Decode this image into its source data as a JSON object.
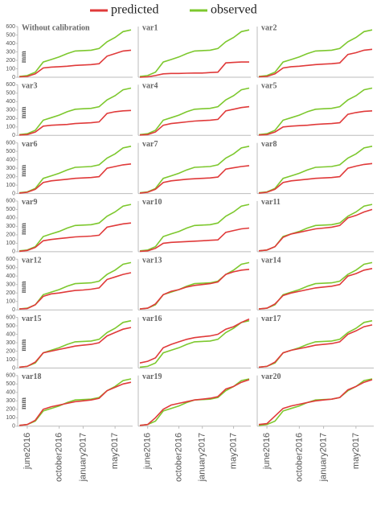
{
  "chart_data": {
    "type": "line",
    "x": [
      "2016-05",
      "2016-06",
      "2016-07",
      "2016-08",
      "2016-09",
      "2016-10",
      "2016-11",
      "2016-12",
      "2017-01",
      "2017-02",
      "2017-03",
      "2017-04",
      "2017-05",
      "2017-06",
      "2017-07"
    ],
    "xticks": [
      {
        "value": "2016-06",
        "label": "june2016"
      },
      {
        "value": "2016-10",
        "label": "october2016"
      },
      {
        "value": "2017-01",
        "label": "january2017"
      },
      {
        "value": "2017-05",
        "label": "may2017"
      }
    ],
    "ylim": [
      0,
      600
    ],
    "yticks": [
      0,
      100,
      200,
      300,
      400,
      500,
      600
    ],
    "y_label": "mm",
    "series": [
      {
        "name": "predicted",
        "color": "#e03a3a"
      },
      {
        "name": "observed",
        "color": "#7dc82e"
      }
    ],
    "panels": [
      {
        "title": "Without calibration",
        "predicted": [
          5,
          10,
          40,
          110,
          120,
          125,
          130,
          140,
          145,
          150,
          160,
          250,
          280,
          310,
          320
        ],
        "observed": [
          10,
          20,
          60,
          180,
          210,
          240,
          280,
          310,
          315,
          320,
          340,
          420,
          470,
          540,
          560
        ]
      },
      {
        "title": "var1",
        "predicted": [
          0,
          5,
          20,
          40,
          45,
          45,
          48,
          50,
          50,
          55,
          60,
          170,
          175,
          180,
          180
        ],
        "observed": [
          10,
          20,
          60,
          180,
          210,
          240,
          280,
          310,
          315,
          320,
          340,
          420,
          470,
          540,
          560
        ]
      },
      {
        "title": "var2",
        "predicted": [
          5,
          10,
          40,
          110,
          125,
          130,
          140,
          150,
          155,
          160,
          170,
          270,
          290,
          320,
          330
        ],
        "observed": [
          10,
          20,
          60,
          180,
          210,
          240,
          280,
          310,
          315,
          320,
          340,
          420,
          470,
          540,
          560
        ]
      },
      {
        "title": "var3",
        "predicted": [
          5,
          10,
          40,
          110,
          120,
          125,
          130,
          140,
          145,
          150,
          160,
          260,
          280,
          290,
          295
        ],
        "observed": [
          10,
          20,
          60,
          180,
          210,
          240,
          280,
          310,
          315,
          320,
          340,
          420,
          470,
          540,
          560
        ]
      },
      {
        "title": "var4",
        "predicted": [
          5,
          10,
          40,
          120,
          140,
          150,
          160,
          170,
          175,
          180,
          190,
          290,
          310,
          330,
          340
        ],
        "observed": [
          10,
          20,
          60,
          180,
          210,
          240,
          280,
          310,
          315,
          320,
          340,
          420,
          470,
          540,
          560
        ]
      },
      {
        "title": "var5",
        "predicted": [
          5,
          10,
          40,
          100,
          110,
          115,
          120,
          130,
          135,
          140,
          150,
          250,
          270,
          285,
          290
        ],
        "observed": [
          10,
          20,
          60,
          180,
          210,
          240,
          280,
          310,
          315,
          320,
          340,
          420,
          470,
          540,
          560
        ]
      },
      {
        "title": "var6",
        "predicted": [
          5,
          15,
          50,
          130,
          150,
          160,
          170,
          180,
          185,
          190,
          200,
          300,
          320,
          340,
          350
        ],
        "observed": [
          10,
          20,
          60,
          180,
          210,
          240,
          280,
          310,
          315,
          320,
          340,
          420,
          470,
          540,
          560
        ]
      },
      {
        "title": "var7",
        "predicted": [
          5,
          15,
          50,
          130,
          150,
          160,
          170,
          175,
          180,
          185,
          195,
          290,
          305,
          320,
          330
        ],
        "observed": [
          10,
          20,
          60,
          180,
          210,
          240,
          280,
          310,
          315,
          320,
          340,
          420,
          470,
          540,
          560
        ]
      },
      {
        "title": "var8",
        "predicted": [
          5,
          15,
          50,
          130,
          150,
          160,
          170,
          180,
          185,
          190,
          200,
          300,
          325,
          345,
          355
        ],
        "observed": [
          10,
          20,
          60,
          180,
          210,
          240,
          280,
          310,
          315,
          320,
          340,
          420,
          470,
          540,
          560
        ]
      },
      {
        "title": "var9",
        "predicted": [
          5,
          15,
          50,
          130,
          145,
          155,
          165,
          175,
          180,
          185,
          195,
          290,
          310,
          330,
          340
        ],
        "observed": [
          10,
          20,
          60,
          180,
          210,
          240,
          280,
          310,
          315,
          320,
          340,
          420,
          470,
          540,
          560
        ]
      },
      {
        "title": "var10",
        "predicted": [
          5,
          10,
          40,
          100,
          110,
          115,
          120,
          125,
          130,
          135,
          140,
          230,
          250,
          270,
          280
        ],
        "observed": [
          10,
          20,
          60,
          180,
          210,
          240,
          280,
          310,
          315,
          320,
          340,
          420,
          470,
          540,
          560
        ]
      },
      {
        "title": "var11",
        "predicted": [
          10,
          20,
          60,
          170,
          210,
          230,
          250,
          270,
          280,
          290,
          310,
          400,
          430,
          470,
          500
        ],
        "observed": [
          10,
          20,
          60,
          180,
          210,
          240,
          280,
          310,
          315,
          320,
          340,
          420,
          470,
          540,
          560
        ]
      },
      {
        "title": "var12",
        "predicted": [
          10,
          15,
          60,
          160,
          190,
          200,
          215,
          230,
          235,
          245,
          260,
          360,
          390,
          420,
          440
        ],
        "observed": [
          10,
          20,
          60,
          180,
          210,
          240,
          280,
          310,
          315,
          320,
          340,
          420,
          470,
          540,
          560
        ]
      },
      {
        "title": "var13",
        "predicted": [
          10,
          20,
          70,
          180,
          220,
          240,
          270,
          290,
          300,
          310,
          330,
          420,
          450,
          470,
          480
        ],
        "observed": [
          10,
          20,
          60,
          180,
          210,
          240,
          280,
          310,
          315,
          320,
          340,
          420,
          470,
          540,
          560
        ]
      },
      {
        "title": "var14",
        "predicted": [
          10,
          20,
          70,
          170,
          200,
          220,
          240,
          260,
          270,
          280,
          300,
          400,
          430,
          470,
          490
        ],
        "observed": [
          10,
          20,
          60,
          180,
          210,
          240,
          280,
          310,
          315,
          320,
          340,
          420,
          470,
          540,
          560
        ]
      },
      {
        "title": "var15",
        "predicted": [
          10,
          20,
          70,
          180,
          200,
          220,
          240,
          260,
          270,
          280,
          300,
          380,
          420,
          460,
          480
        ],
        "observed": [
          10,
          20,
          60,
          180,
          210,
          240,
          280,
          310,
          315,
          320,
          340,
          420,
          470,
          540,
          560
        ]
      },
      {
        "title": "var16",
        "predicted": [
          60,
          80,
          120,
          240,
          280,
          310,
          340,
          360,
          370,
          380,
          400,
          460,
          490,
          540,
          580
        ],
        "observed": [
          10,
          20,
          60,
          180,
          210,
          240,
          280,
          310,
          315,
          320,
          340,
          420,
          470,
          540,
          560
        ]
      },
      {
        "title": "var17",
        "predicted": [
          10,
          20,
          70,
          180,
          210,
          230,
          250,
          270,
          280,
          290,
          310,
          400,
          440,
          490,
          510
        ],
        "observed": [
          10,
          20,
          60,
          180,
          210,
          240,
          280,
          310,
          315,
          320,
          340,
          420,
          470,
          540,
          560
        ]
      },
      {
        "title": "var18",
        "predicted": [
          10,
          20,
          70,
          200,
          230,
          250,
          270,
          290,
          300,
          310,
          330,
          420,
          460,
          500,
          520
        ],
        "observed": [
          10,
          20,
          60,
          180,
          210,
          240,
          280,
          310,
          315,
          320,
          340,
          420,
          470,
          540,
          560
        ]
      },
      {
        "title": "var19",
        "predicted": [
          10,
          20,
          100,
          200,
          250,
          270,
          290,
          310,
          320,
          330,
          350,
          440,
          470,
          520,
          550
        ],
        "observed": [
          10,
          20,
          60,
          180,
          210,
          240,
          280,
          310,
          315,
          320,
          340,
          420,
          470,
          540,
          560
        ]
      },
      {
        "title": "var20",
        "predicted": [
          20,
          30,
          120,
          210,
          240,
          260,
          280,
          300,
          310,
          320,
          340,
          430,
          470,
          520,
          550
        ],
        "observed": [
          10,
          20,
          60,
          180,
          210,
          240,
          280,
          310,
          315,
          320,
          340,
          420,
          470,
          540,
          560
        ]
      }
    ]
  }
}
